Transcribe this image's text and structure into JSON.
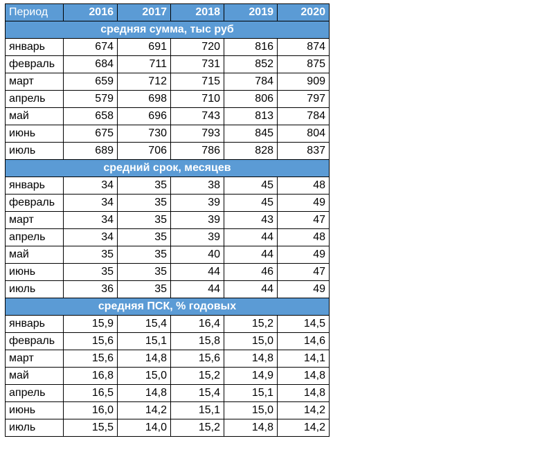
{
  "table": {
    "header": [
      "Период",
      "2016",
      "2017",
      "2018",
      "2019",
      "2020"
    ],
    "sections": [
      {
        "title": "средняя сумма, тыс руб",
        "rows": [
          [
            "январь",
            674,
            691,
            720,
            816,
            874
          ],
          [
            "февраль",
            684,
            711,
            731,
            852,
            875
          ],
          [
            "март",
            659,
            712,
            715,
            784,
            909
          ],
          [
            "апрель",
            579,
            698,
            710,
            806,
            797
          ],
          [
            "май",
            658,
            696,
            743,
            813,
            784
          ],
          [
            "июнь",
            675,
            730,
            793,
            845,
            804
          ],
          [
            "июль",
            689,
            706,
            786,
            828,
            837
          ]
        ]
      },
      {
        "title": "средний срок, месяцев",
        "rows": [
          [
            "январь",
            34,
            35,
            38,
            45,
            48
          ],
          [
            "февраль",
            34,
            35,
            39,
            45,
            49
          ],
          [
            "март",
            34,
            35,
            39,
            43,
            47
          ],
          [
            "апрель",
            34,
            35,
            39,
            44,
            48
          ],
          [
            "май",
            35,
            35,
            40,
            44,
            49
          ],
          [
            "июнь",
            35,
            35,
            44,
            46,
            47
          ],
          [
            "июль",
            36,
            35,
            44,
            44,
            49
          ]
        ]
      },
      {
        "title": "средняя ПСК, % годовых",
        "rows": [
          [
            "январь",
            "15,9",
            "15,4",
            "16,4",
            "15,2",
            "14,5"
          ],
          [
            "февраль",
            "15,6",
            "15,1",
            "15,8",
            "15,0",
            "14,6"
          ],
          [
            "март",
            "15,6",
            "14,8",
            "15,6",
            "14,8",
            "14,1"
          ],
          [
            "май",
            "16,8",
            "15,0",
            "15,2",
            "14,9",
            "14,8"
          ],
          [
            "апрель",
            "16,5",
            "14,8",
            "15,4",
            "15,1",
            "14,8"
          ],
          [
            "июнь",
            "16,0",
            "14,2",
            "15,1",
            "15,0",
            "14,2"
          ],
          [
            "июль",
            "15,5",
            "14,0",
            "15,2",
            "14,8",
            "14,2"
          ]
        ]
      }
    ]
  }
}
